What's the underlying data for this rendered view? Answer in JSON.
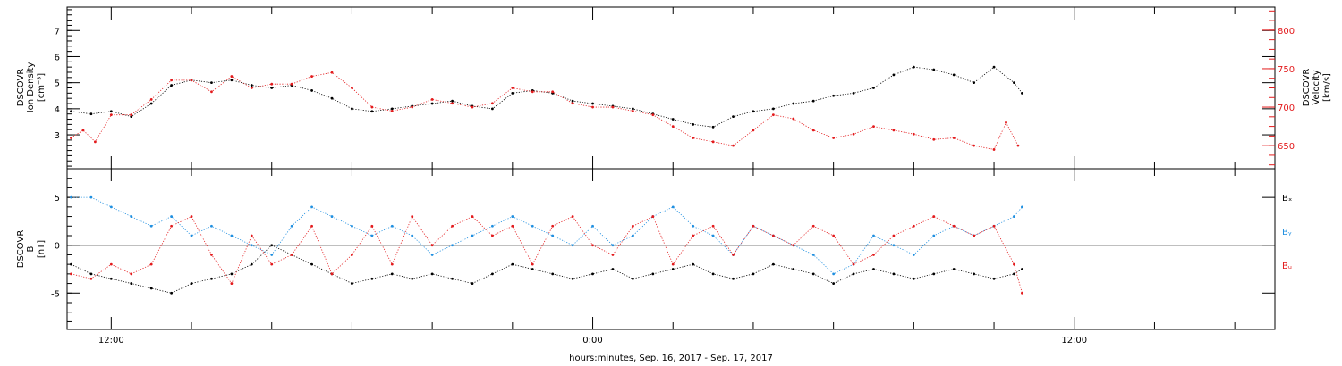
{
  "colors": {
    "black": "#000000",
    "red": "#e31a1c",
    "blue": "#1f8fe0"
  },
  "xlabel": "hours:minutes, Sep. 16, 2017 - Sep. 17, 2017",
  "xticks": [
    {
      "hour": 12,
      "label": "12:00"
    },
    {
      "hour": 24,
      "label": "0:00"
    },
    {
      "hour": 36,
      "label": "12:00"
    }
  ],
  "chart_data": [
    {
      "type": "scatter",
      "x_unit": "hours since Sep. 16, 2017 00:00",
      "xlim": [
        10.9,
        41
      ],
      "ylabel_lines": [
        "DSCOVR",
        "Ion Density",
        "[cm⁻³]"
      ],
      "ylim": [
        1.7,
        7.9
      ],
      "yticks": [
        3,
        4,
        5,
        6,
        7
      ],
      "y2label_lines": [
        "DSCOVR",
        "Velocity",
        "[km/s]"
      ],
      "y2lim": [
        620,
        830
      ],
      "y2ticks": [
        650,
        700,
        750,
        800
      ],
      "series": [
        {
          "color": "#000000",
          "axis": "left",
          "x": [
            11.0,
            11.5,
            12.0,
            12.5,
            13.0,
            13.5,
            14.0,
            14.5,
            15.0,
            15.5,
            16.0,
            16.5,
            17.0,
            17.5,
            18.0,
            18.5,
            19.0,
            19.5,
            20.0,
            20.5,
            21.0,
            21.5,
            22.0,
            22.5,
            23.0,
            23.5,
            24.0,
            24.5,
            25.0,
            25.5,
            26.0,
            26.5,
            27.0,
            27.5,
            28.0,
            28.5,
            29.0,
            29.5,
            30.0,
            30.5,
            31.0,
            31.5,
            32.0,
            32.5,
            33.0,
            33.5,
            34.0,
            34.5,
            34.7
          ],
          "y": [
            3.9,
            3.8,
            3.9,
            3.7,
            4.2,
            4.9,
            5.1,
            5.0,
            5.1,
            4.9,
            4.8,
            4.9,
            4.7,
            4.4,
            4.0,
            3.9,
            4.0,
            4.1,
            4.2,
            4.3,
            4.1,
            4.0,
            4.6,
            4.7,
            4.6,
            4.3,
            4.2,
            4.1,
            4.0,
            3.8,
            3.6,
            3.4,
            3.3,
            3.7,
            3.9,
            4.0,
            4.2,
            4.3,
            4.5,
            4.6,
            4.8,
            5.3,
            5.6,
            5.5,
            5.3,
            5.0,
            5.6,
            5.0,
            4.6
          ]
        },
        {
          "color": "#e31a1c",
          "axis": "right",
          "x": [
            11.0,
            11.3,
            11.6,
            12.0,
            12.5,
            13.0,
            13.5,
            14.0,
            14.5,
            15.0,
            15.5,
            16.0,
            16.5,
            17.0,
            17.5,
            18.0,
            18.5,
            19.0,
            19.5,
            20.0,
            20.5,
            21.0,
            21.5,
            22.0,
            22.5,
            23.0,
            23.5,
            24.0,
            24.5,
            25.0,
            25.5,
            26.0,
            26.5,
            27.0,
            27.5,
            28.0,
            28.5,
            29.0,
            29.5,
            30.0,
            30.5,
            31.0,
            31.5,
            32.0,
            32.5,
            33.0,
            33.5,
            34.0,
            34.3,
            34.6
          ],
          "y": [
            660,
            670,
            655,
            690,
            690,
            710,
            735,
            735,
            720,
            740,
            725,
            730,
            730,
            740,
            745,
            725,
            700,
            695,
            700,
            710,
            705,
            700,
            705,
            725,
            720,
            720,
            705,
            700,
            700,
            695,
            690,
            675,
            660,
            655,
            650,
            670,
            690,
            685,
            670,
            660,
            665,
            675,
            670,
            665,
            658,
            660,
            650,
            645,
            680,
            650
          ]
        }
      ]
    },
    {
      "type": "scatter",
      "x_unit": "hours since Sep. 16, 2017 00:00",
      "xlim": [
        10.9,
        41
      ],
      "ylabel_lines": [
        "DSCOVR",
        "B",
        "[nT]"
      ],
      "ylim": [
        -8.8,
        8.0
      ],
      "yticks": [
        -5,
        0,
        5
      ],
      "zero_line": true,
      "legend": [
        "Bₓ",
        "Bᵧ",
        "Bᵤ"
      ],
      "series": [
        {
          "name": "Bₓ",
          "color": "#000000",
          "x": [
            11.0,
            11.5,
            12.0,
            12.5,
            13.0,
            13.5,
            14.0,
            14.5,
            15.0,
            15.5,
            16.0,
            16.5,
            17.0,
            17.5,
            18.0,
            18.5,
            19.0,
            19.5,
            20.0,
            20.5,
            21.0,
            21.5,
            22.0,
            22.5,
            23.0,
            23.5,
            24.0,
            24.5,
            25.0,
            25.5,
            26.0,
            26.5,
            27.0,
            27.5,
            28.0,
            28.5,
            29.0,
            29.5,
            30.0,
            30.5,
            31.0,
            31.5,
            32.0,
            32.5,
            33.0,
            33.5,
            34.0,
            34.5,
            34.7
          ],
          "y": [
            -2,
            -3,
            -3.5,
            -4,
            -4.5,
            -5,
            -4,
            -3.5,
            -3,
            -2,
            0,
            -1,
            -2,
            -3,
            -4,
            -3.5,
            -3,
            -3.5,
            -3,
            -3.5,
            -4,
            -3,
            -2,
            -2.5,
            -3,
            -3.5,
            -3,
            -2.5,
            -3.5,
            -3,
            -2.5,
            -2,
            -3,
            -3.5,
            -3,
            -2,
            -2.5,
            -3,
            -4,
            -3,
            -2.5,
            -3,
            -3.5,
            -3,
            -2.5,
            -3,
            -3.5,
            -3,
            -2.5
          ]
        },
        {
          "name": "Bᵧ",
          "color": "#1f8fe0",
          "x": [
            11.0,
            11.5,
            12.0,
            12.5,
            13.0,
            13.5,
            14.0,
            14.5,
            15.0,
            15.5,
            16.0,
            16.5,
            17.0,
            17.5,
            18.0,
            18.5,
            19.0,
            19.5,
            20.0,
            20.5,
            21.0,
            21.5,
            22.0,
            22.5,
            23.0,
            23.5,
            24.0,
            24.5,
            25.0,
            25.5,
            26.0,
            26.5,
            27.0,
            27.5,
            28.0,
            28.5,
            29.0,
            29.5,
            30.0,
            30.5,
            31.0,
            31.5,
            32.0,
            32.5,
            33.0,
            33.5,
            34.0,
            34.5,
            34.7
          ],
          "y": [
            5,
            5,
            4,
            3,
            2,
            3,
            1,
            2,
            1,
            0,
            -1,
            2,
            4,
            3,
            2,
            1,
            2,
            1,
            -1,
            0,
            1,
            2,
            3,
            2,
            1,
            0,
            2,
            0,
            1,
            3,
            4,
            2,
            1,
            -1,
            2,
            1,
            0,
            -1,
            -3,
            -2,
            1,
            0,
            -1,
            1,
            2,
            1,
            2,
            3,
            4
          ]
        },
        {
          "name": "Bᵤ",
          "color": "#e31a1c",
          "x": [
            11.0,
            11.5,
            12.0,
            12.5,
            13.0,
            13.5,
            14.0,
            14.5,
            15.0,
            15.5,
            16.0,
            16.5,
            17.0,
            17.5,
            18.0,
            18.5,
            19.0,
            19.5,
            20.0,
            20.5,
            21.0,
            21.5,
            22.0,
            22.5,
            23.0,
            23.5,
            24.0,
            24.5,
            25.0,
            25.5,
            26.0,
            26.5,
            27.0,
            27.5,
            28.0,
            28.5,
            29.0,
            29.5,
            30.0,
            30.5,
            31.0,
            31.5,
            32.0,
            32.5,
            33.0,
            33.5,
            34.0,
            34.5,
            34.7
          ],
          "y": [
            -3,
            -3.5,
            -2,
            -3,
            -2,
            2,
            3,
            -1,
            -4,
            1,
            -2,
            -1,
            2,
            -3,
            -1,
            2,
            -2,
            3,
            0,
            2,
            3,
            1,
            2,
            -2,
            2,
            3,
            0,
            -1,
            2,
            3,
            -2,
            1,
            2,
            -1,
            2,
            1,
            0,
            2,
            1,
            -2,
            -1,
            1,
            2,
            3,
            2,
            1,
            2,
            -2,
            -5
          ]
        }
      ]
    }
  ]
}
